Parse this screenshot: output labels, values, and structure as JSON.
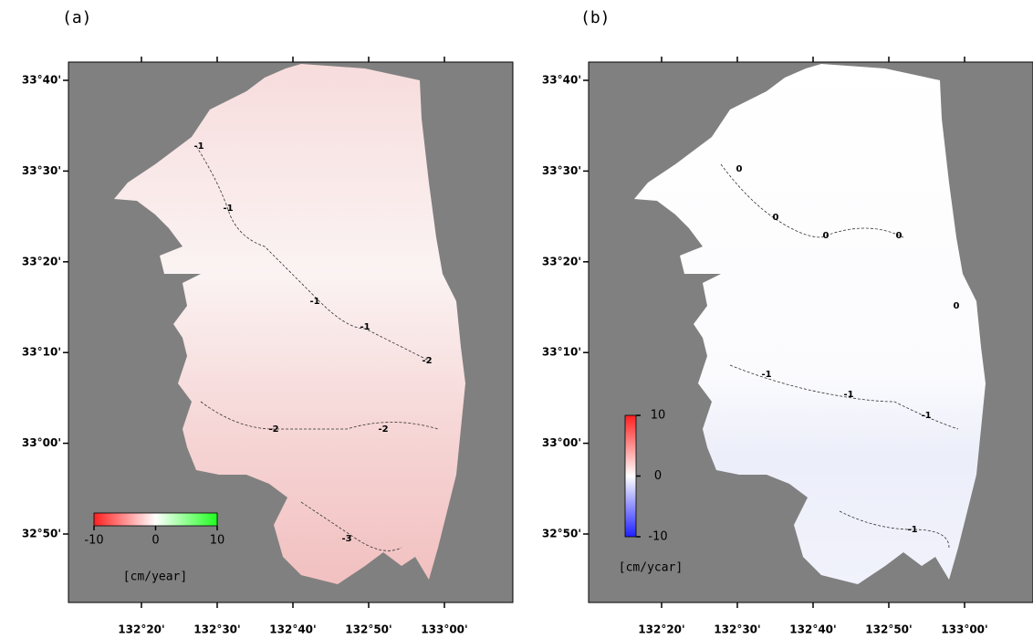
{
  "panels": [
    {
      "label": "(a)",
      "colorbar": {
        "lim": [
          -10,
          10
        ],
        "ticks": [
          -10,
          0,
          10
        ],
        "unit": "[cm/year]",
        "colors": [
          "#ff2020",
          "#ffffff",
          "#20ff20"
        ]
      },
      "contour_labels": [
        "-1",
        "-1",
        "-1",
        "-1",
        "-2",
        "-2",
        "-2",
        "-3"
      ]
    },
    {
      "label": "(b)",
      "colorbar": {
        "lim": [
          -10,
          10
        ],
        "ticks": [
          10,
          0,
          -10
        ],
        "unit": "[cm/ycar]",
        "colors": [
          "#2020ff",
          "#ffffff",
          "#ff2020"
        ]
      },
      "contour_labels": [
        "0",
        "0",
        "0",
        "0",
        "0",
        "-1",
        "-1",
        "-1",
        "-1"
      ]
    }
  ],
  "lat_ticks": [
    "33°40'",
    "33°30'",
    "33°20'",
    "33°10'",
    "33°00'",
    "32°50'"
  ],
  "lon_ticks": [
    "132°20'",
    "132°30'",
    "132°40'",
    "132°50'",
    "133°00'"
  ]
}
